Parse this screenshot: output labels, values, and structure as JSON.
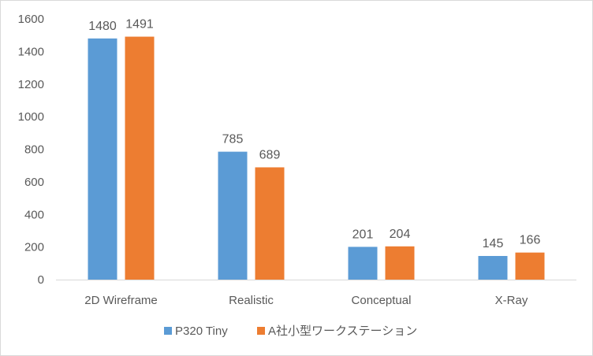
{
  "chart_data": {
    "type": "bar",
    "categories": [
      "2D Wireframe",
      "Realistic",
      "Conceptual",
      "X-Ray"
    ],
    "series": [
      {
        "name": "P320 Tiny",
        "values": [
          1480,
          785,
          201,
          145
        ],
        "color": "#5b9bd5"
      },
      {
        "name": "A社小型ワークステーション",
        "values": [
          1491,
          689,
          204,
          166
        ],
        "color": "#ed7d31"
      }
    ],
    "ylim": [
      0,
      1600
    ],
    "yticks": [
      0,
      200,
      400,
      600,
      800,
      1000,
      1200,
      1400,
      1600
    ],
    "grid": false,
    "legend": "bottom",
    "data_labels": true,
    "axis_color": "#d9d9d9",
    "text_color": "#595959"
  }
}
